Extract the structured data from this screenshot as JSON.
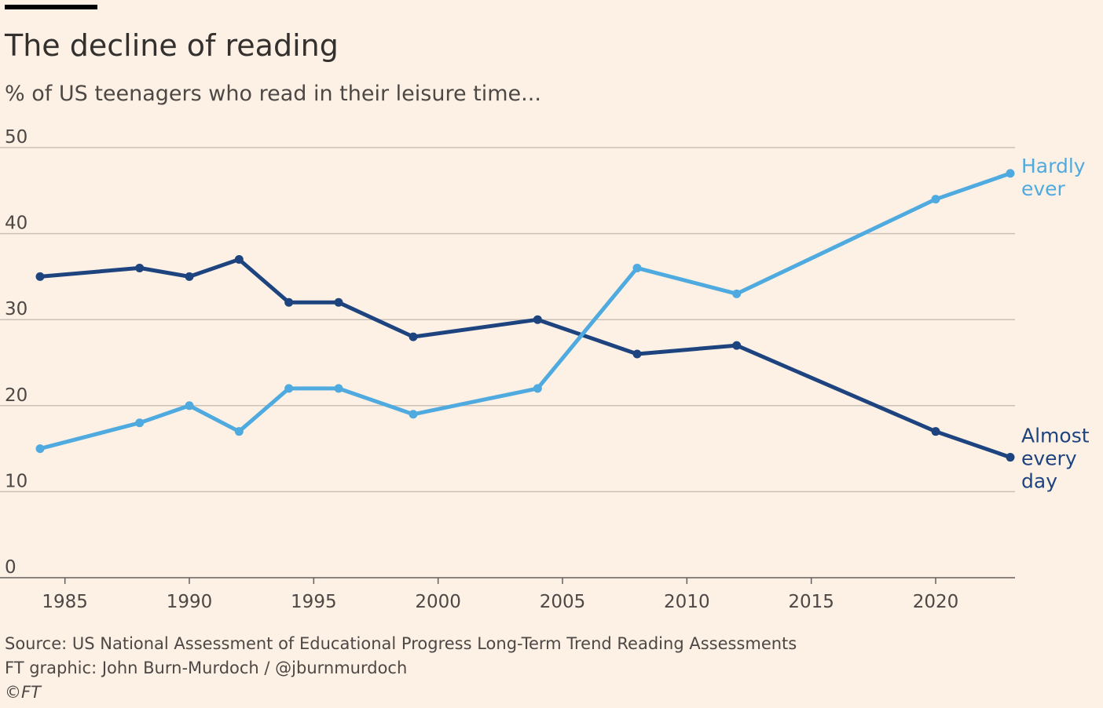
{
  "header": {
    "title": "The decline of reading",
    "subtitle": "% of US teenagers who read in their leisure time..."
  },
  "footer": {
    "source": "Source: US National Assessment of Educational Progress Long-Term Trend Reading Assessments",
    "credit": "FT graphic: John Burn-Murdoch / @jburnmurdoch",
    "copyright": "©FT"
  },
  "colors": {
    "background": "#fdf1e5",
    "grid": "#ccc1b7",
    "almost_every_day": "#1e4480",
    "hardly_ever": "#4faadf"
  },
  "chart_data": {
    "type": "line",
    "title": "The decline of reading",
    "subtitle": "% of US teenagers who read in their leisure time...",
    "xlabel": "",
    "ylabel": "",
    "xlim": [
      1984,
      2023
    ],
    "ylim": [
      0,
      50
    ],
    "x_ticks": [
      1985,
      1990,
      1995,
      2000,
      2005,
      2010,
      2015,
      2020
    ],
    "y_ticks": [
      0,
      10,
      20,
      30,
      40,
      50
    ],
    "grid": true,
    "legend": "direct labels at line ends (right)",
    "series": [
      {
        "name": "Almost every day",
        "label_lines": [
          "Almost",
          "every",
          "day"
        ],
        "color": "#1e4480",
        "x": [
          1984,
          1988,
          1990,
          1992,
          1994,
          1996,
          1999,
          2004,
          2008,
          2012,
          2020,
          2023
        ],
        "values": [
          35,
          36,
          35,
          37,
          32,
          32,
          28,
          30,
          26,
          27,
          17,
          14
        ]
      },
      {
        "name": "Hardly ever",
        "label_lines": [
          "Hardly",
          "ever"
        ],
        "color": "#4faadf",
        "x": [
          1984,
          1988,
          1990,
          1992,
          1994,
          1996,
          1999,
          2004,
          2008,
          2012,
          2020,
          2023
        ],
        "values": [
          15,
          18,
          20,
          17,
          22,
          22,
          19,
          22,
          36,
          33,
          44,
          47
        ]
      }
    ]
  }
}
